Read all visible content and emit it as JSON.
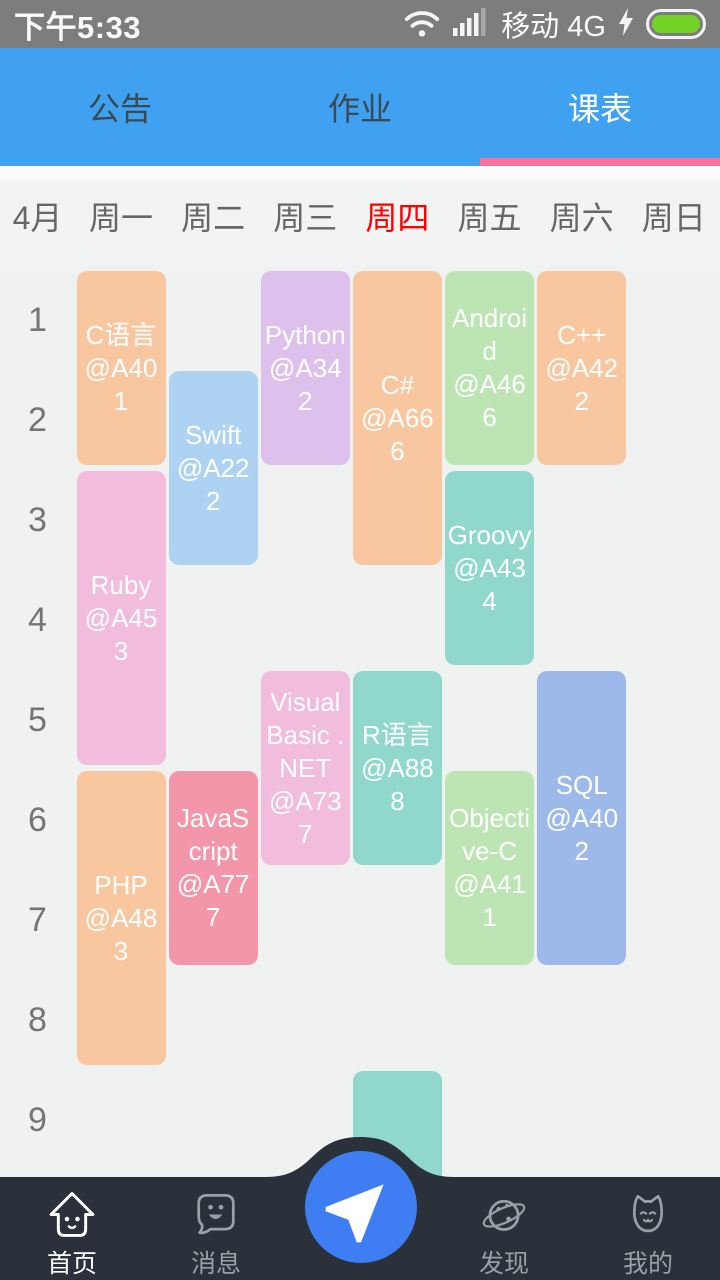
{
  "status_bar": {
    "time": "下午5:33",
    "network": "移动 4G",
    "icons": [
      "wifi-icon",
      "signal-bars-icon",
      "charging-bolt-icon",
      "battery-icon"
    ],
    "battery_color": "#72D226",
    "bg_color": "#7D7D7D"
  },
  "header": {
    "bg_color": "#3FA1F0",
    "underline_color": "#F8739B",
    "tabs": [
      {
        "label": "公告",
        "active": false
      },
      {
        "label": "作业",
        "active": false
      },
      {
        "label": "课表",
        "active": true
      }
    ]
  },
  "week_header": {
    "month": "4月",
    "today_color": "#FF0000",
    "days": [
      {
        "label": "周一",
        "today": false
      },
      {
        "label": "周二",
        "today": false
      },
      {
        "label": "周三",
        "today": false
      },
      {
        "label": "周四",
        "today": true
      },
      {
        "label": "周五",
        "today": false
      },
      {
        "label": "周六",
        "today": false
      },
      {
        "label": "周日",
        "today": false
      }
    ]
  },
  "timetable": {
    "periods": [
      "1",
      "2",
      "3",
      "4",
      "5",
      "6",
      "7",
      "8",
      "9"
    ],
    "courses": [
      {
        "title": "C语言",
        "room": "@A401",
        "day": 0,
        "start": 1,
        "end": 2,
        "color": "orange"
      },
      {
        "title": "Ruby",
        "room": "@A453",
        "day": 0,
        "start": 3,
        "end": 5,
        "color": "pink"
      },
      {
        "title": "PHP",
        "room": "@A483",
        "day": 0,
        "start": 6,
        "end": 8,
        "color": "orange"
      },
      {
        "title": "Swift",
        "room": "@A222",
        "day": 1,
        "start": 2,
        "end": 3,
        "color": "sky"
      },
      {
        "title": "JavaScript",
        "room": "@A777",
        "day": 1,
        "start": 6,
        "end": 7,
        "color": "salmon"
      },
      {
        "title": "Python",
        "room": "@A342",
        "day": 2,
        "start": 1,
        "end": 2,
        "color": "lavender"
      },
      {
        "title": "Visual Basic .NET",
        "room": "@A737",
        "day": 2,
        "start": 5,
        "end": 6,
        "color": "pink"
      },
      {
        "title": "C#",
        "room": "@A666",
        "day": 3,
        "start": 1,
        "end": 3,
        "color": "orange"
      },
      {
        "title": "R语言",
        "room": "@A888",
        "day": 3,
        "start": 5,
        "end": 6,
        "color": "teal"
      },
      {
        "title": "",
        "room": "",
        "day": 3,
        "start": 9,
        "end": 10,
        "color": "teal"
      },
      {
        "title": "Android",
        "room": "@A466",
        "day": 4,
        "start": 1,
        "end": 2,
        "color": "green"
      },
      {
        "title": "Groovy",
        "room": "@A434",
        "day": 4,
        "start": 3,
        "end": 4,
        "color": "teal"
      },
      {
        "title": "Objective-C",
        "room": "@A411",
        "day": 4,
        "start": 6,
        "end": 7,
        "color": "green"
      },
      {
        "title": "C++",
        "room": "@A422",
        "day": 5,
        "start": 1,
        "end": 2,
        "color": "orange"
      },
      {
        "title": "SQL",
        "room": "@A402",
        "day": 5,
        "start": 5,
        "end": 7,
        "color": "periwinkle"
      }
    ]
  },
  "colors": {
    "course_colors": {
      "orange": "#F8C79F",
      "pink": "#F2BCDC",
      "sky": "#AED3F2",
      "lavender": "#DEC0EC",
      "salmon": "#F396A9",
      "teal": "#90D8CC",
      "green": "#BDE5B3",
      "periwinkle": "#9DB9EA"
    },
    "nav_bg": "#2A313A",
    "fab_color": "#3E7EF2"
  },
  "bottom_nav": {
    "items": [
      {
        "label": "首页",
        "icon": "home-icon",
        "active": true
      },
      {
        "label": "消息",
        "icon": "chat-icon",
        "active": false
      },
      {
        "label": "发现",
        "icon": "planet-icon",
        "active": false
      },
      {
        "label": "我的",
        "icon": "cat-icon",
        "active": false
      }
    ],
    "center_button_icon": "send-icon"
  }
}
